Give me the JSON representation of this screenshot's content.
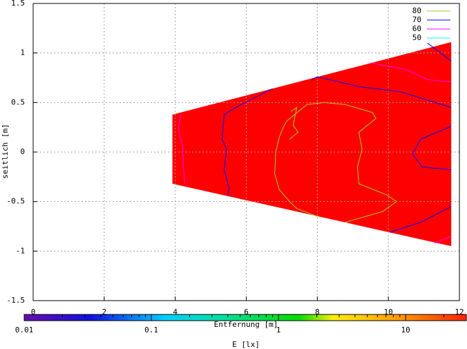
{
  "chart_data": {
    "type": "contour",
    "xlabel": "Entfernung [m]",
    "ylabel": "seitlich [m]",
    "xlim": [
      0,
      12
    ],
    "xticks": [
      0,
      2,
      4,
      6,
      8,
      10,
      12
    ],
    "ylim": [
      -1.5,
      1.5
    ],
    "yticks": [
      -1.5,
      -1,
      -0.5,
      0,
      0.5,
      1,
      1.5
    ],
    "grid": true,
    "legend": "top-right",
    "surface": {
      "color": "#ff0000",
      "x": [
        3.92,
        11.77,
        11.77,
        3.92
      ],
      "y": [
        0.377,
        1.11,
        -0.95,
        -0.32
      ]
    },
    "series": [
      {
        "name": "80",
        "color": "#9acd32",
        "x": [
          8.0,
          7.42,
          7.22,
          6.93,
          6.8,
          6.83,
          6.93,
          7.03,
          7.13,
          7.71,
          8.19,
          8.78,
          9.55,
          9.65,
          9.17,
          9.26,
          9.13,
          9.17,
          9.94,
          10.23,
          9.84,
          8.78,
          null,
          7.26,
          7.42,
          7.32,
          7.46,
          7.22
        ],
        "y": [
          -0.65,
          -0.57,
          -0.5,
          -0.38,
          -0.22,
          0.0,
          0.15,
          0.24,
          0.31,
          0.48,
          0.5,
          0.48,
          0.4,
          0.34,
          0.2,
          0.03,
          -0.15,
          -0.32,
          -0.43,
          -0.5,
          -0.6,
          -0.71,
          null,
          0.41,
          0.45,
          0.27,
          0.2,
          0.13
        ]
      },
      {
        "name": "70",
        "color": "#0000ff",
        "x": [
          6.74,
          5.86,
          5.38,
          5.32,
          5.44,
          5.38,
          5.51,
          5.48,
          null,
          7.84,
          8.0,
          9.17,
          10.33,
          11.77,
          null,
          11.77,
          10.91,
          10.68,
          10.95,
          11.77,
          null,
          10.04,
          10.91,
          11.77,
          null,
          11.1,
          11.77
        ],
        "y": [
          0.64,
          0.48,
          0.38,
          0.13,
          0.03,
          -0.18,
          -0.36,
          -0.44,
          null,
          0.73,
          0.76,
          0.66,
          0.61,
          0.45,
          null,
          0.26,
          0.13,
          -0.02,
          -0.15,
          -0.18,
          null,
          -0.81,
          -0.71,
          -0.55,
          null,
          1.1,
          0.92
        ]
      },
      {
        "name": "60",
        "color": "#ff00ff",
        "x": [
          4.16,
          4.08,
          4.21,
          4.23,
          4.27,
          null,
          9.51,
          10.52,
          11.1,
          11.77,
          null,
          11.3,
          11.77
        ],
        "y": [
          0.37,
          0.24,
          0.06,
          -0.15,
          -0.32,
          null,
          0.9,
          0.83,
          0.73,
          0.71,
          null,
          -0.92,
          -0.85
        ]
      },
      {
        "name": "50",
        "color": "#00ffff",
        "x": [],
        "y": []
      }
    ],
    "colorbar": {
      "label": "E [lx]",
      "log": true,
      "lim": [
        0.01,
        30
      ],
      "ticks": [
        0.01,
        0.1,
        1,
        10
      ],
      "minorticks": [
        0.02,
        0.03,
        0.04,
        0.05,
        0.06,
        0.07,
        0.08,
        0.09,
        0.2,
        0.3,
        0.4,
        0.5,
        0.6,
        0.7,
        0.8,
        0.9,
        2,
        3,
        4,
        5,
        6,
        7,
        8,
        9,
        20
      ]
    }
  }
}
